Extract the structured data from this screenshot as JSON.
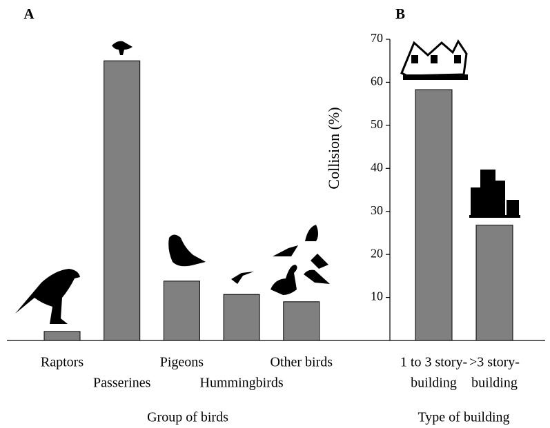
{
  "chart_data": [
    {
      "type": "bar",
      "panel": "A",
      "xlabel": "Group of birds",
      "categories": [
        [
          "Raptors"
        ],
        [
          "Passerines"
        ],
        [
          "Pigeons"
        ],
        [
          "Hummingbirds"
        ],
        [
          "Other birds"
        ]
      ],
      "values": [
        2.1,
        65,
        13.8,
        10.7,
        9
      ],
      "color": "#808080",
      "ylim": [
        0,
        70
      ]
    },
    {
      "type": "bar",
      "panel": "B",
      "xlabel": "Type of building",
      "ylabel": "Collision (%)",
      "categories": [
        [
          "1 to 3 story-",
          "building"
        ],
        [
          ">3 story-",
          "building"
        ]
      ],
      "values": [
        58.3,
        26.8
      ],
      "color": "#808080",
      "ylim": [
        0,
        70
      ],
      "yticks": [
        10,
        20,
        30,
        40,
        50,
        60,
        70
      ]
    }
  ]
}
